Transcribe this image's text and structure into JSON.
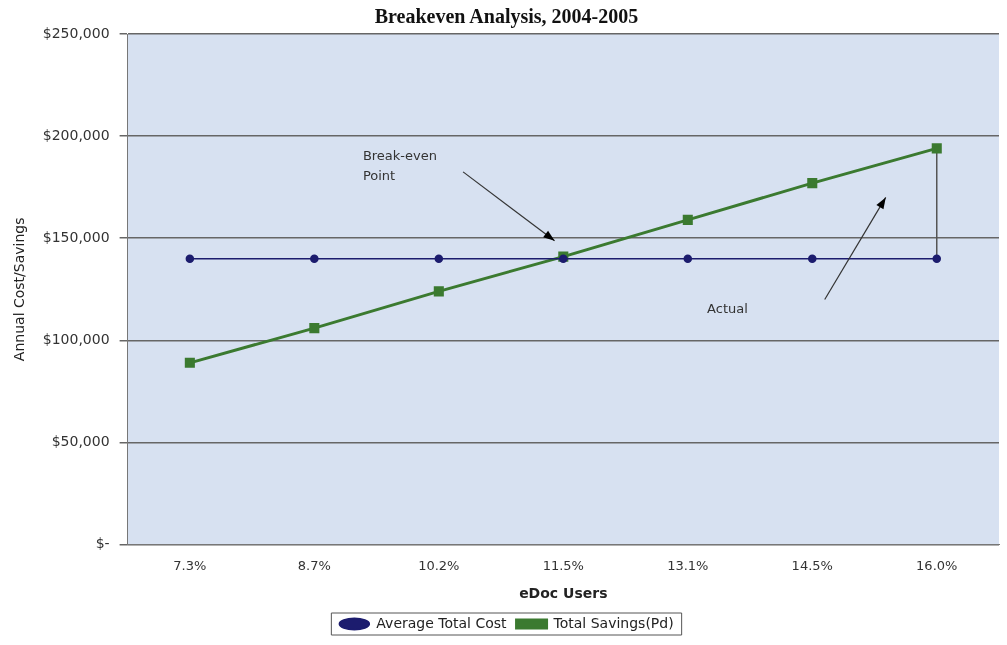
{
  "chart_data": {
    "type": "line",
    "title": "Breakeven Analysis, 2004-2005",
    "xlabel": "eDoc Users",
    "ylabel": "Annual Cost/Savings",
    "categories": [
      "7.3%",
      "8.7%",
      "10.2%",
      "11.5%",
      "13.1%",
      "14.5%",
      "16.0%"
    ],
    "series": [
      {
        "name": "Average Total Cost",
        "color": "#1c1c6e",
        "marker": "circle",
        "values": [
          140000,
          140000,
          140000,
          140000,
          140000,
          140000,
          140000
        ]
      },
      {
        "name": "Total Savings(Pd)",
        "color": "#3b7a30",
        "marker": "square",
        "values": [
          89000,
          106000,
          124000,
          141000,
          159000,
          177000,
          194000
        ]
      },
      {
        "type": "line",
        "color": "#555555",
        "marker": "none",
        "x": [
          "16.0%",
          "16.0%"
        ],
        "values": [
          140000,
          194000
        ]
      }
    ],
    "ylim": [
      0,
      250000
    ],
    "yticks": [
      {
        "value": 0,
        "label": "$-"
      },
      {
        "value": 50000,
        "label": "$50,000"
      },
      {
        "value": 100000,
        "label": "$100,000"
      },
      {
        "value": 150000,
        "label": "$150,000"
      },
      {
        "value": 200000,
        "label": "$200,000"
      },
      {
        "value": 250000,
        "label": "$250,000"
      }
    ],
    "grid": "y",
    "legend": "bottom",
    "line_style": "solid",
    "annotations": [
      "Break-even\nPoint",
      "Actual"
    ]
  }
}
